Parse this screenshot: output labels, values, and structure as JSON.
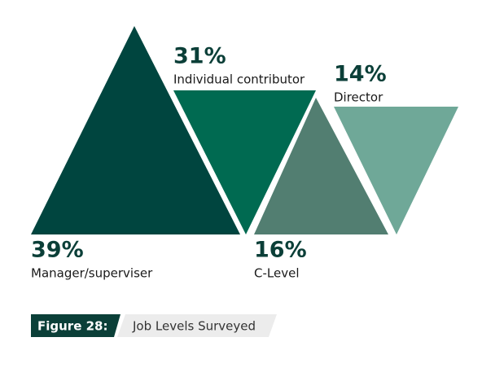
{
  "chart_data": {
    "type": "triangle",
    "categories": [
      "Manager/superviser",
      "Individual contributor",
      "C-Level",
      "Director"
    ],
    "values": [
      39,
      31,
      16,
      14
    ],
    "value_labels": [
      "39%",
      "31%",
      "16%",
      "14%"
    ],
    "colors": [
      "#00453f",
      "#006a51",
      "#527e71",
      "#6fa898"
    ],
    "figure_label": "Figure 28:",
    "caption": "Job Levels Surveyed"
  }
}
